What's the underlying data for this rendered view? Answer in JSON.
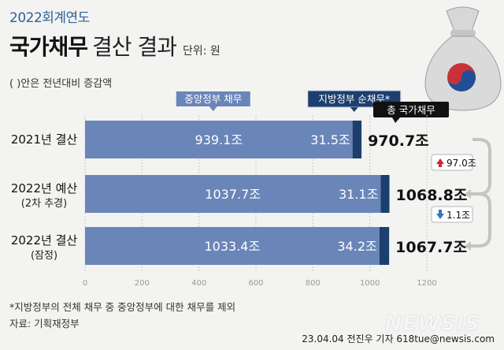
{
  "header": {
    "fiscal_year": "2022회계연도",
    "title_main": "국가채무",
    "title_sub": "결산 결과",
    "unit": "단위: 원",
    "paren_note": "( )안은 전년대비 증감액"
  },
  "legend": {
    "central": "중앙정부 채무",
    "local": "지방정부 순채무*",
    "total": "총 국가채무"
  },
  "rows": [
    {
      "label": "2021년 결산",
      "sub": ""
    },
    {
      "label": "2022년 예산",
      "sub": "(2차 추경)"
    },
    {
      "label": "2022년 결산",
      "sub": "(잠정)"
    }
  ],
  "changes": [
    {
      "direction": "up",
      "text": "97.0조"
    },
    {
      "direction": "down",
      "text": "1.1조"
    }
  ],
  "footnote": "*지방정부의 전체 채무 중 중앙정부에 대한 채무를 제외",
  "source": "자료: 기획재정부",
  "credit": "23.04.04 전진우 기자 618tue@newsis.com",
  "brand": "NEWSIS",
  "colors": {
    "central": "#6a86b8",
    "local": "#1d3f6e",
    "accent_up": "#d2282d",
    "accent_down": "#3a72c4",
    "title_blue": "#2f5f9e"
  },
  "chart_data": {
    "type": "bar",
    "orientation": "horizontal",
    "stacked": true,
    "categories": [
      "2021년 결산",
      "2022년 예산",
      "2022년 결산"
    ],
    "series": [
      {
        "name": "중앙정부 채무",
        "values": [
          939.1,
          1037.7,
          1033.4
        ],
        "labels": [
          "939.1조",
          "1037.7조",
          "1033.4조"
        ]
      },
      {
        "name": "지방정부 순채무*",
        "values": [
          31.5,
          31.1,
          34.2
        ],
        "labels": [
          "31.5조",
          "31.1조",
          "34.2조"
        ]
      }
    ],
    "totals": [
      970.7,
      1068.8,
      1067.7
    ],
    "total_labels": [
      "970.7조",
      "1068.8조",
      "1067.7조"
    ],
    "x_ticks": [
      "0",
      "200",
      "400",
      "600",
      "800",
      "1000",
      "1200"
    ],
    "xlim": [
      0,
      1200
    ],
    "legend_placement": "top"
  }
}
